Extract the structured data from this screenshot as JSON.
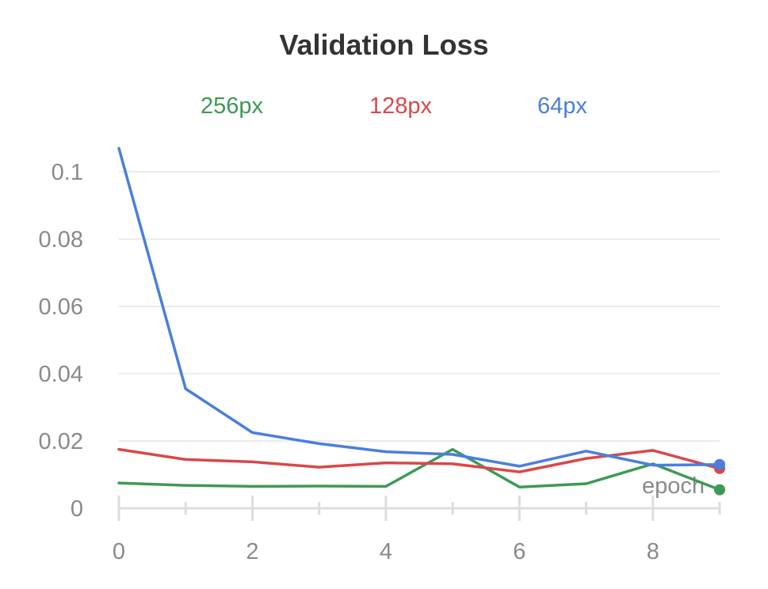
{
  "chart_data": {
    "type": "line",
    "title": "Validation Loss",
    "xlabel": "epoch",
    "ylabel": "",
    "x": [
      0,
      1,
      2,
      3,
      4,
      5,
      6,
      7,
      8,
      9
    ],
    "xlim": [
      0,
      9
    ],
    "ylim": [
      0,
      0.11
    ],
    "xticks": [
      0,
      2,
      4,
      6,
      8
    ],
    "yticks": [
      0,
      0.02,
      0.04,
      0.06,
      0.08,
      0.1
    ],
    "ytick_labels": [
      "0",
      "0.02",
      "0.04",
      "0.06",
      "0.08",
      "0.1"
    ],
    "grid": true,
    "legend_position": "top",
    "series": [
      {
        "name": "256px",
        "color": "#3d9a55",
        "values": [
          0.0075,
          0.0068,
          0.0065,
          0.0066,
          0.0065,
          0.0175,
          0.0063,
          0.0073,
          0.0132,
          0.0055
        ]
      },
      {
        "name": "128px",
        "color": "#d94848",
        "values": [
          0.0175,
          0.0145,
          0.0138,
          0.0122,
          0.0135,
          0.0132,
          0.0108,
          0.0148,
          0.0172,
          0.0118
        ]
      },
      {
        "name": "64px",
        "color": "#4a7fdb",
        "values": [
          0.107,
          0.0355,
          0.0225,
          0.0192,
          0.0168,
          0.016,
          0.0125,
          0.017,
          0.0128,
          0.013
        ]
      }
    ]
  }
}
